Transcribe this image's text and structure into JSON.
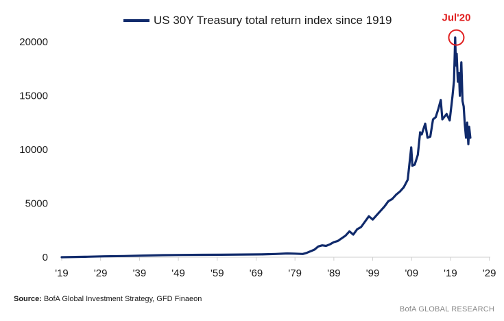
{
  "chart_data": {
    "type": "line",
    "title": "",
    "xlabel": "",
    "ylabel": "",
    "xlim": [
      1919,
      2031
    ],
    "ylim": [
      0,
      20000
    ],
    "x_ticks": [
      1919,
      1929,
      1939,
      1949,
      1959,
      1969,
      1979,
      1989,
      1999,
      2009,
      2019,
      2029
    ],
    "x_tick_labels": [
      "'19",
      "'29",
      "'39",
      "'49",
      "'59",
      "'69",
      "'79",
      "'89",
      "'99",
      "'09",
      "'19",
      "'29"
    ],
    "y_ticks": [
      0,
      5000,
      10000,
      15000,
      20000
    ],
    "y_tick_labels": [
      "0",
      "5000",
      "10000",
      "15000",
      "20000"
    ],
    "grid": false,
    "legend_position": "top-center",
    "series": [
      {
        "name": "US 30Y Treasury total return index since 1919",
        "color": "#102a6b",
        "x": [
          1919,
          1925,
          1930,
          1935,
          1940,
          1945,
          1950,
          1955,
          1960,
          1965,
          1970,
          1974,
          1977,
          1979,
          1981,
          1982,
          1984,
          1985,
          1986,
          1987,
          1988,
          1989,
          1990,
          1992,
          1993,
          1994,
          1995,
          1996,
          1998,
          1999,
          2000,
          2002,
          2003,
          2004,
          2005,
          2006,
          2007,
          2008,
          2008.9,
          2009.2,
          2009.8,
          2010.6,
          2011.2,
          2011.6,
          2012.5,
          2013.1,
          2013.8,
          2014.5,
          2015.2,
          2015.9,
          2016.5,
          2016.9,
          2018.0,
          2018.8,
          2019.5,
          2019.9,
          2020.2,
          2020.4,
          2020.6,
          2020.9,
          2021.2,
          2021.4,
          2021.8,
          2022.1,
          2022.4,
          2022.7,
          2023.0,
          2023.3,
          2023.6,
          2023.8,
          2024.1
        ],
        "y": [
          0,
          40,
          80,
          110,
          150,
          190,
          210,
          220,
          230,
          250,
          260,
          300,
          350,
          330,
          300,
          400,
          700,
          1000,
          1100,
          1050,
          1200,
          1400,
          1500,
          2000,
          2400,
          2100,
          2600,
          2800,
          3800,
          3500,
          3900,
          4700,
          5200,
          5400,
          5800,
          6100,
          6500,
          7200,
          10200,
          8500,
          8600,
          9500,
          11600,
          11400,
          12400,
          11100,
          11200,
          12800,
          13000,
          13800,
          14600,
          12800,
          13300,
          12700,
          14900,
          16400,
          20400,
          17800,
          18900,
          16300,
          17100,
          15000,
          18100,
          14500,
          14000,
          12300,
          11100,
          12500,
          10500,
          12100,
          11100
        ]
      }
    ],
    "annotations": [
      {
        "text": "Jul'20",
        "x": 2020.5,
        "y": 20400,
        "color": "#e02020",
        "marker": "circle"
      }
    ]
  },
  "source": {
    "label": "Source:",
    "text": " BofA Global Investment Strategy, GFD Finaeon"
  },
  "footer": {
    "brand": "BofA GLOBAL RESEARCH"
  }
}
